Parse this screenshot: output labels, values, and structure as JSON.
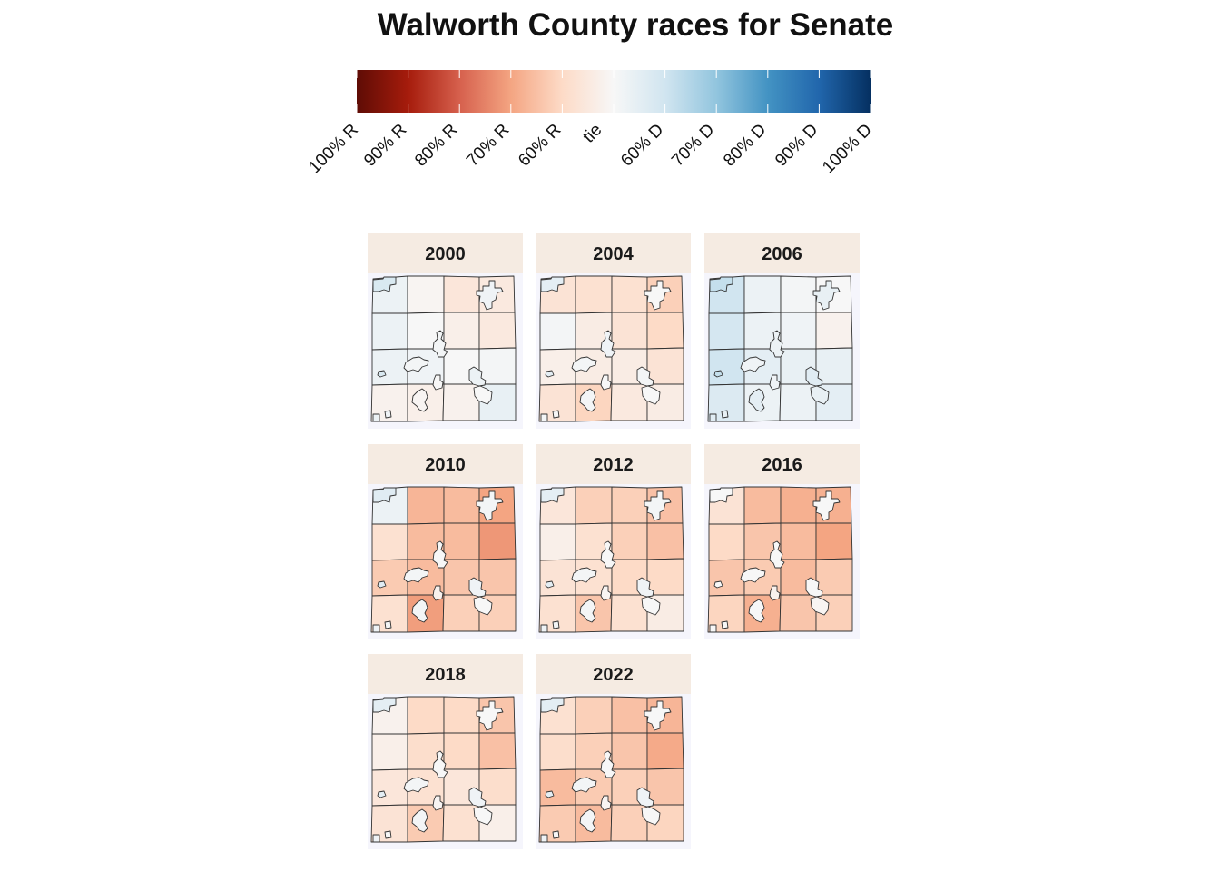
{
  "title": "Walworth County races for Senate",
  "legend": {
    "labels": [
      "100% R",
      "90% R",
      "80% R",
      "70% R",
      "60% R",
      "tie",
      "60% D",
      "70% D",
      "80% D",
      "90% D",
      "100% D"
    ],
    "colors": [
      "#5e0c05",
      "#a61c0c",
      "#d6604d",
      "#f4a582",
      "#fddbc7",
      "#f7f7f7",
      "#d1e5f0",
      "#92c5de",
      "#4393c3",
      "#2166ac",
      "#053061"
    ]
  },
  "chart_data": {
    "type": "heatmap",
    "title": "Walworth County races for Senate",
    "scale": "Democratic share of two-party vote (0 = 100% R, 0.5 = tie, 1 = 100% D)",
    "grid_rows": 4,
    "grid_cols": 4,
    "panels": [
      {
        "year": "2000",
        "shares": [
          [
            0.53,
            0.49,
            0.44,
            0.45
          ],
          [
            0.53,
            0.5,
            0.47,
            0.45
          ],
          [
            0.53,
            0.52,
            0.5,
            0.51
          ],
          [
            0.48,
            0.47,
            0.48,
            0.54
          ]
        ],
        "towns": [
          [
            0.58,
            0.52,
            0.51,
            0.51
          ],
          [
            0.53,
            0.5,
            0.49,
            0.5
          ]
        ]
      },
      {
        "year": "2004",
        "shares": [
          [
            0.43,
            0.42,
            0.42,
            0.38
          ],
          [
            0.51,
            0.46,
            0.43,
            0.4
          ],
          [
            0.47,
            0.46,
            0.46,
            0.43
          ],
          [
            0.43,
            0.39,
            0.45,
            0.46
          ]
        ],
        "towns": [
          [
            0.55,
            0.5,
            0.52,
            0.51
          ],
          [
            0.51,
            0.5,
            0.51,
            0.5
          ]
        ]
      },
      {
        "year": "2006",
        "shares": [
          [
            0.6,
            0.53,
            0.51,
            0.5
          ],
          [
            0.59,
            0.53,
            0.52,
            0.48
          ],
          [
            0.6,
            0.55,
            0.54,
            0.54
          ],
          [
            0.57,
            0.53,
            0.53,
            0.55
          ]
        ],
        "towns": [
          [
            0.62,
            0.54,
            0.53,
            0.52
          ],
          [
            0.56,
            0.52,
            0.55,
            0.54
          ]
        ]
      },
      {
        "year": "2010",
        "shares": [
          [
            0.53,
            0.33,
            0.34,
            0.3
          ],
          [
            0.42,
            0.34,
            0.34,
            0.28
          ],
          [
            0.37,
            0.34,
            0.36,
            0.36
          ],
          [
            0.42,
            0.29,
            0.38,
            0.38
          ]
        ],
        "towns": [
          [
            0.56,
            0.51,
            0.5,
            0.51
          ],
          [
            0.52,
            0.48,
            0.51,
            0.5
          ]
        ]
      },
      {
        "year": "2012",
        "shares": [
          [
            0.44,
            0.38,
            0.38,
            0.35
          ],
          [
            0.47,
            0.42,
            0.38,
            0.35
          ],
          [
            0.43,
            0.42,
            0.4,
            0.4
          ],
          [
            0.42,
            0.36,
            0.42,
            0.46
          ]
        ],
        "towns": [
          [
            0.55,
            0.51,
            0.5,
            0.51
          ],
          [
            0.52,
            0.49,
            0.51,
            0.5
          ]
        ]
      },
      {
        "year": "2016",
        "shares": [
          [
            0.43,
            0.34,
            0.32,
            0.32
          ],
          [
            0.4,
            0.36,
            0.34,
            0.3
          ],
          [
            0.36,
            0.37,
            0.34,
            0.37
          ],
          [
            0.39,
            0.32,
            0.36,
            0.38
          ]
        ],
        "towns": [
          [
            0.5,
            0.5,
            0.5,
            0.5
          ],
          [
            0.5,
            0.48,
            0.5,
            0.49
          ]
        ]
      },
      {
        "year": "2018",
        "shares": [
          [
            0.48,
            0.4,
            0.4,
            0.36
          ],
          [
            0.47,
            0.41,
            0.4,
            0.35
          ],
          [
            0.44,
            0.42,
            0.44,
            0.41
          ],
          [
            0.43,
            0.37,
            0.42,
            0.47
          ]
        ],
        "towns": [
          [
            0.55,
            0.5,
            0.5,
            0.51
          ],
          [
            0.52,
            0.49,
            0.51,
            0.5
          ]
        ]
      },
      {
        "year": "2022",
        "shares": [
          [
            0.42,
            0.38,
            0.35,
            0.33
          ],
          [
            0.41,
            0.38,
            0.36,
            0.31
          ],
          [
            0.34,
            0.37,
            0.38,
            0.36
          ],
          [
            0.37,
            0.34,
            0.38,
            0.39
          ]
        ],
        "towns": [
          [
            0.55,
            0.5,
            0.5,
            0.51
          ],
          [
            0.52,
            0.49,
            0.51,
            0.5
          ]
        ]
      }
    ]
  }
}
